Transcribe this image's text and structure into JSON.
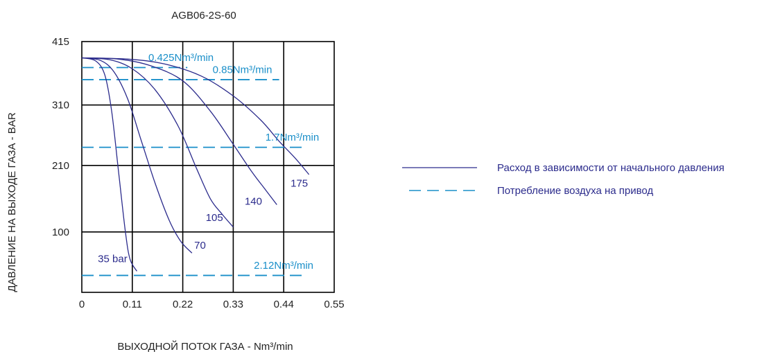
{
  "chart_data": {
    "type": "line",
    "title": "AGB06-2S-60",
    "xlabel": "ВЫХОДНОЙ ПОТОК ГАЗА - Nm³/min",
    "ylabel": "ДАВЛЕНИЕ НА ВЫХОДЕ ГАЗА - BAR",
    "xlim": [
      0,
      0.55
    ],
    "ylim": [
      0,
      415
    ],
    "x_ticks": [
      "0",
      "0.11",
      "0.22",
      "0.33",
      "0.44",
      "0.55"
    ],
    "y_ticks": [
      "100",
      "210",
      "310",
      "415"
    ],
    "grid": true,
    "colors": {
      "curve": "#2b2b8c",
      "consumption": "#1a8fc9",
      "grid": "#000000",
      "text": "#222222"
    },
    "series": [
      {
        "name": "35 bar",
        "points": [
          [
            0,
            388
          ],
          [
            0.03,
            383
          ],
          [
            0.05,
            360
          ],
          [
            0.065,
            300
          ],
          [
            0.08,
            200
          ],
          [
            0.095,
            100
          ],
          [
            0.105,
            55
          ],
          [
            0.12,
            35
          ]
        ]
      },
      {
        "name": "70",
        "points": [
          [
            0,
            388
          ],
          [
            0.04,
            384
          ],
          [
            0.07,
            365
          ],
          [
            0.1,
            320
          ],
          [
            0.13,
            250
          ],
          [
            0.16,
            180
          ],
          [
            0.19,
            120
          ],
          [
            0.215,
            85
          ],
          [
            0.24,
            65
          ]
        ]
      },
      {
        "name": "105",
        "points": [
          [
            0,
            388
          ],
          [
            0.06,
            385
          ],
          [
            0.11,
            370
          ],
          [
            0.16,
            335
          ],
          [
            0.21,
            275
          ],
          [
            0.25,
            205
          ],
          [
            0.28,
            155
          ],
          [
            0.305,
            130
          ],
          [
            0.33,
            108
          ]
        ]
      },
      {
        "name": "140",
        "points": [
          [
            0,
            388
          ],
          [
            0.08,
            386
          ],
          [
            0.15,
            375
          ],
          [
            0.22,
            350
          ],
          [
            0.28,
            300
          ],
          [
            0.33,
            245
          ],
          [
            0.37,
            200
          ],
          [
            0.4,
            170
          ],
          [
            0.425,
            145
          ]
        ]
      },
      {
        "name": "175",
        "points": [
          [
            0,
            388
          ],
          [
            0.1,
            386
          ],
          [
            0.18,
            378
          ],
          [
            0.26,
            358
          ],
          [
            0.33,
            325
          ],
          [
            0.39,
            285
          ],
          [
            0.43,
            250
          ],
          [
            0.465,
            222
          ],
          [
            0.495,
            195
          ]
        ]
      }
    ],
    "curve_labels": [
      {
        "text": "35 bar",
        "x": 0.035,
        "y": 50
      },
      {
        "text": "70",
        "x": 0.245,
        "y": 72
      },
      {
        "text": "105",
        "x": 0.27,
        "y": 118
      },
      {
        "text": "140",
        "x": 0.355,
        "y": 145
      },
      {
        "text": "175",
        "x": 0.455,
        "y": 175
      }
    ],
    "consumption_lines": [
      {
        "label": "0.425Nm³/min",
        "y": 372,
        "x_start": 0,
        "x_end": 0.23,
        "label_x": 0.145,
        "label_y": 383
      },
      {
        "label": "0.85Nm³/min",
        "y": 352,
        "x_start": 0,
        "x_end": 0.43,
        "label_x": 0.285,
        "label_y": 363
      },
      {
        "label": "1.7Nm³/min",
        "y": 240,
        "x_start": 0,
        "x_end": 0.48,
        "label_x": 0.4,
        "label_y": 251
      },
      {
        "label": "2.12Nm³/min",
        "y": 28,
        "x_start": 0,
        "x_end": 0.48,
        "label_x": 0.375,
        "label_y": 39
      }
    ],
    "legend": {
      "position": "right",
      "items": [
        {
          "label": "Расход в зависимости от начального давления",
          "style": "solid"
        },
        {
          "label": "Потребление воздуха на привод",
          "style": "dashed"
        }
      ]
    }
  }
}
